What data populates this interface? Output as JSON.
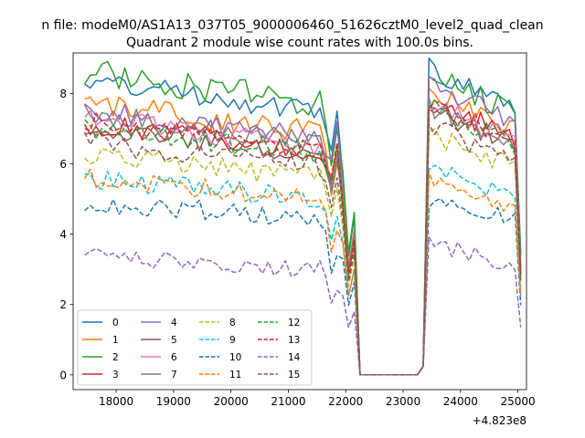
{
  "chart_data": {
    "type": "line",
    "suptitle": "n file: modeM0/AS1A13_037T05_9000006460_51626cztM0_level2_quad_clean",
    "title": "Quadrant 2 module wise count rates with 100.0s bins.",
    "xlabel": "",
    "ylabel": "",
    "x_offset_label": "+4.823e8",
    "xlim": [
      17250,
      25150
    ],
    "ylim": [
      -0.42,
      9.15
    ],
    "x_ticks": [
      18000,
      19000,
      20000,
      21000,
      22000,
      23000,
      24000,
      25000
    ],
    "x_tick_labels": [
      "18000",
      "19000",
      "20000",
      "21000",
      "22000",
      "23000",
      "24000",
      "25000"
    ],
    "y_ticks": [
      0,
      2,
      4,
      6,
      8
    ],
    "y_tick_labels": [
      "0",
      "2",
      "4",
      "6",
      "8"
    ],
    "grid": false,
    "legend_position": "lower-left",
    "legend_columns": 4,
    "x_start": 17450,
    "x_step": 100,
    "gap_start": 22250,
    "gap_end": 23250,
    "series": [
      {
        "name": "0",
        "color": "#1f77b4",
        "dash": "solid",
        "level": 7.5,
        "seg2": 7.8,
        "amp": 0.15,
        "dip": 7.5
      },
      {
        "name": "1",
        "color": "#ff7f0e",
        "dash": "solid",
        "level": 6.9,
        "seg2": 7.2,
        "amp": 0.15,
        "dip": 6.0
      },
      {
        "name": "2",
        "color": "#2ca02c",
        "dash": "solid",
        "level": 7.7,
        "seg2": 7.7,
        "amp": 0.18,
        "dip": 7.0
      },
      {
        "name": "3",
        "color": "#d62728",
        "dash": "solid",
        "level": 6.4,
        "seg2": 7.0,
        "amp": 0.15,
        "dip": 6.5
      },
      {
        "name": "4",
        "color": "#9467bd",
        "dash": "solid",
        "level": 6.7,
        "seg2": 7.4,
        "amp": 0.15,
        "dip": 7.2
      },
      {
        "name": "5",
        "color": "#8c564b",
        "dash": "solid",
        "level": 6.3,
        "seg2": 6.8,
        "amp": 0.15,
        "dip": 6.2
      },
      {
        "name": "6",
        "color": "#e377c2",
        "dash": "solid",
        "level": 6.5,
        "seg2": 6.9,
        "amp": 0.15,
        "dip": 6.3
      },
      {
        "name": "7",
        "color": "#7f7f7f",
        "dash": "solid",
        "level": 6.6,
        "seg2": 6.8,
        "amp": 0.15,
        "dip": 6.1
      },
      {
        "name": "8",
        "color": "#bcbd22",
        "dash": "dashed",
        "level": 5.6,
        "seg2": 6.1,
        "amp": 0.14,
        "dip": 5.3
      },
      {
        "name": "9",
        "color": "#17becf",
        "dash": "dashed",
        "level": 5.0,
        "seg2": 5.3,
        "amp": 0.13,
        "dip": 4.5
      },
      {
        "name": "10",
        "color": "#1f77b4",
        "dash": "dashed",
        "level": 4.4,
        "seg2": 4.5,
        "amp": 0.14,
        "dip": 3.4
      },
      {
        "name": "11",
        "color": "#ff7f0e",
        "dash": "dashed",
        "level": 5.0,
        "seg2": 5.0,
        "amp": 0.13,
        "dip": 4.1
      },
      {
        "name": "12",
        "color": "#2ca02c",
        "dash": "dashed",
        "level": 6.3,
        "seg2": 6.8,
        "amp": 0.14,
        "dip": 6.4
      },
      {
        "name": "13",
        "color": "#d62728",
        "dash": "dashed",
        "level": 6.4,
        "seg2": 6.9,
        "amp": 0.14,
        "dip": 6.6
      },
      {
        "name": "14",
        "color": "#9467bd",
        "dash": "dashed",
        "level": 3.0,
        "seg2": 3.3,
        "amp": 0.12,
        "dip": 2.4
      },
      {
        "name": "15",
        "color": "#8c564b",
        "dash": "dashed",
        "level": 5.9,
        "seg2": 6.3,
        "amp": 0.14,
        "dip": 5.6
      }
    ]
  }
}
